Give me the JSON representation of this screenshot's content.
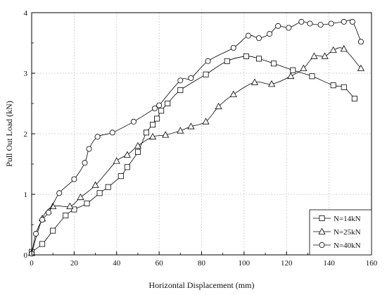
{
  "chart_data": {
    "type": "line",
    "title": "",
    "xlabel": "Horizontal Displacement (mm)",
    "ylabel": "Pull Out Load (kN)",
    "xlim": [
      0,
      160
    ],
    "ylim": [
      0,
      4
    ],
    "xticks": [
      "0",
      "20",
      "40",
      "60",
      "80",
      "100",
      "120",
      "140",
      "160"
    ],
    "yticks": [
      "0",
      "1",
      "2",
      "3",
      "4"
    ],
    "grid": true,
    "legend_position": "bottom-right",
    "series": [
      {
        "name": "N=14kN",
        "marker": "square",
        "line_style": "solid",
        "x": [
          0,
          5,
          10,
          16,
          20,
          26,
          32,
          36,
          42,
          45,
          50,
          54,
          57,
          59,
          61,
          64,
          70,
          82,
          92,
          101,
          107,
          114,
          123,
          132,
          142,
          147,
          152
        ],
        "y": [
          0.05,
          0.18,
          0.4,
          0.65,
          0.75,
          0.85,
          1.02,
          1.12,
          1.3,
          1.45,
          1.7,
          2.02,
          2.15,
          2.25,
          2.38,
          2.5,
          2.72,
          2.98,
          3.2,
          3.28,
          3.24,
          3.16,
          3.05,
          2.95,
          2.8,
          2.77,
          2.58
        ]
      },
      {
        "name": "N=25kN",
        "marker": "triangle",
        "line_style": "solid",
        "x": [
          0,
          5,
          10,
          18,
          23,
          30,
          40,
          45,
          50,
          57,
          63,
          70,
          75,
          82,
          88,
          95,
          105,
          113,
          122,
          128,
          133,
          138,
          142,
          147,
          155
        ],
        "y": [
          0.03,
          0.6,
          0.8,
          0.8,
          0.95,
          1.15,
          1.55,
          1.65,
          1.8,
          1.95,
          1.98,
          2.05,
          2.12,
          2.2,
          2.45,
          2.65,
          2.85,
          2.82,
          2.95,
          3.08,
          3.28,
          3.28,
          3.38,
          3.4,
          3.08
        ]
      },
      {
        "name": "N=40kN",
        "marker": "circle",
        "line_style": "solid",
        "x": [
          0,
          2,
          5,
          8,
          13,
          20,
          25,
          27,
          31,
          38,
          48,
          58,
          60,
          70,
          75,
          83,
          95,
          102,
          107,
          112,
          116,
          121,
          127,
          131,
          136,
          141,
          147,
          151,
          155
        ],
        "y": [
          0.02,
          0.35,
          0.58,
          0.7,
          1.02,
          1.25,
          1.52,
          1.75,
          1.95,
          2.02,
          2.2,
          2.42,
          2.47,
          2.88,
          2.92,
          3.2,
          3.42,
          3.62,
          3.58,
          3.65,
          3.78,
          3.75,
          3.85,
          3.82,
          3.8,
          3.82,
          3.85,
          3.85,
          3.52
        ]
      }
    ]
  }
}
